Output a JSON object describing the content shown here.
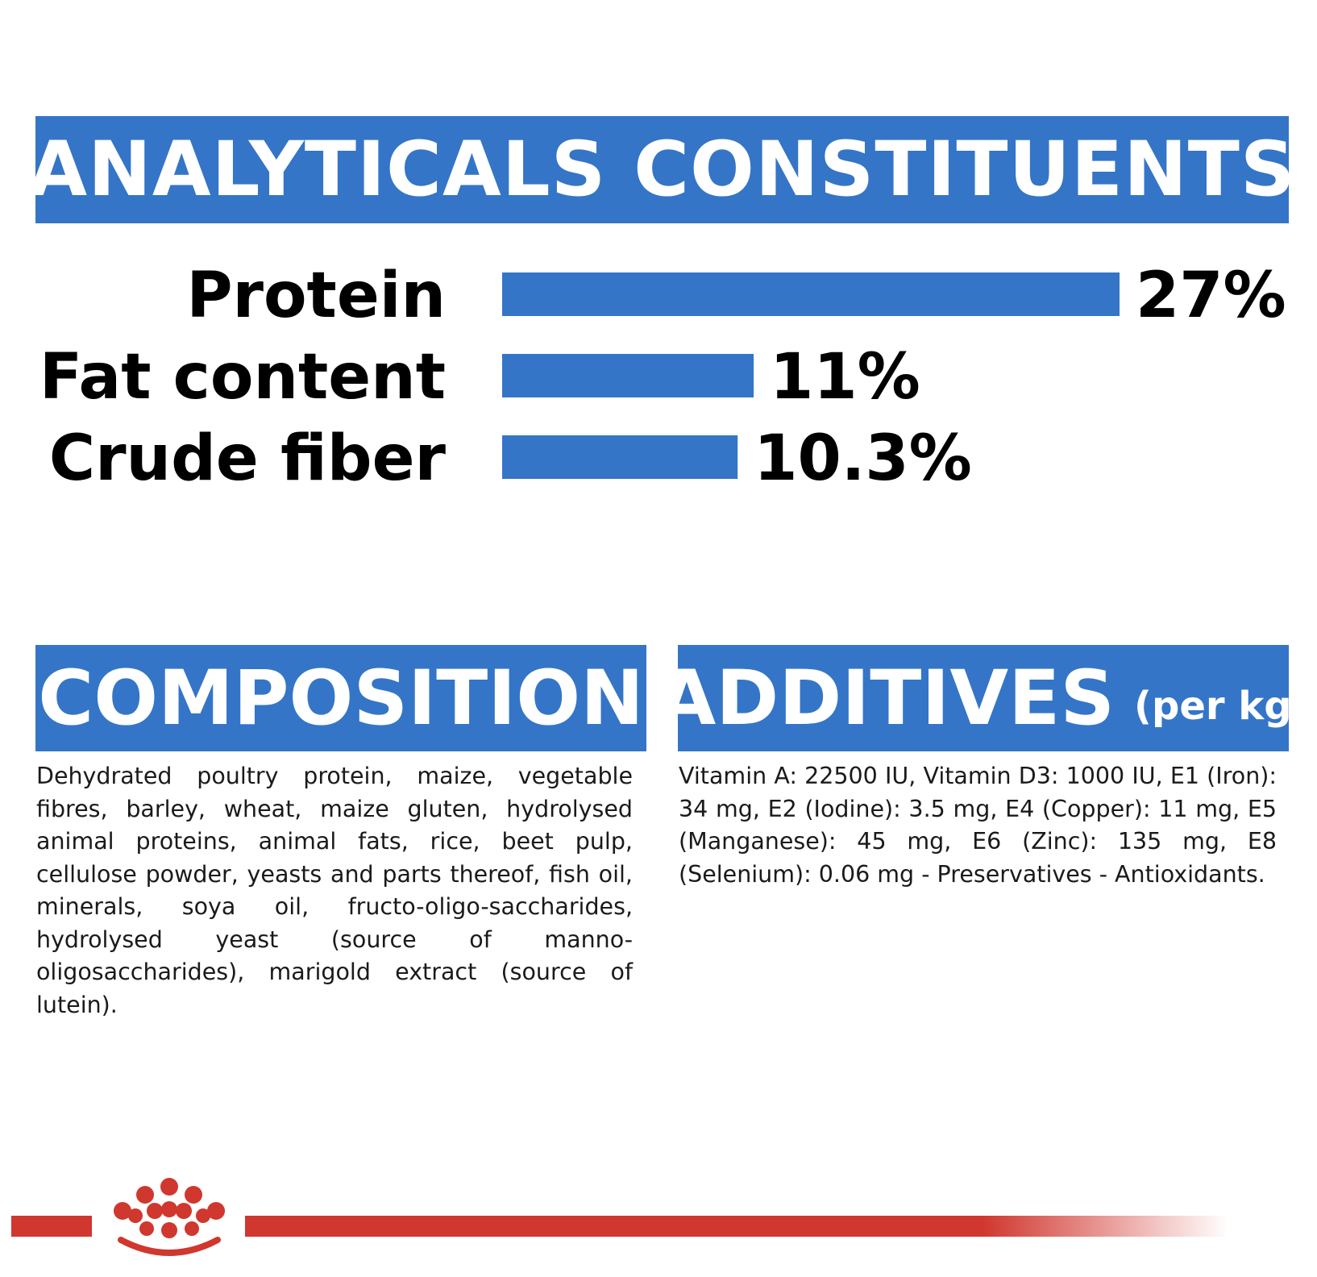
{
  "analytical": {
    "title": "ANALYTICALS CONSTITUENTS"
  },
  "chart_data": {
    "type": "bar",
    "orientation": "horizontal",
    "categories": [
      "Protein",
      "Fat content",
      "Crude fiber"
    ],
    "values": [
      27,
      11,
      10.3
    ],
    "value_labels": [
      "27%",
      "11%",
      "10.3%"
    ],
    "bar_color": "#3475c7"
  },
  "composition": {
    "title": "COMPOSITION",
    "text": "Dehydrated poultry protein, maize, vegetable fibres, barley, wheat, maize gluten, hydrolysed animal proteins, animal fats, rice, beet pulp, cellulose powder, yeasts and parts thereof, fish oil, minerals, soya oil, fructo-oligo-saccharides, hydrolysed yeast (source of manno-oligosaccharides), marigold extract (source of lutein)."
  },
  "additives": {
    "title": "ADDITIVES",
    "subtitle": "(per kg)",
    "text": "Vitamin A: 22500 IU, Vitamin D3: 1000 IU, E1 (Iron): 34 mg, E2 (Iodine): 3.5 mg, E4 (Copper): 11 mg, E5 (Manganese): 45 mg, E6 (Zinc): 135 mg, E8 (Selenium): 0.06 mg - Preservatives - Antioxidants."
  },
  "colors": {
    "banner": "#3475c7",
    "accent_red": "#d0372e"
  },
  "footer": {
    "logo_icon": "crown-icon"
  }
}
